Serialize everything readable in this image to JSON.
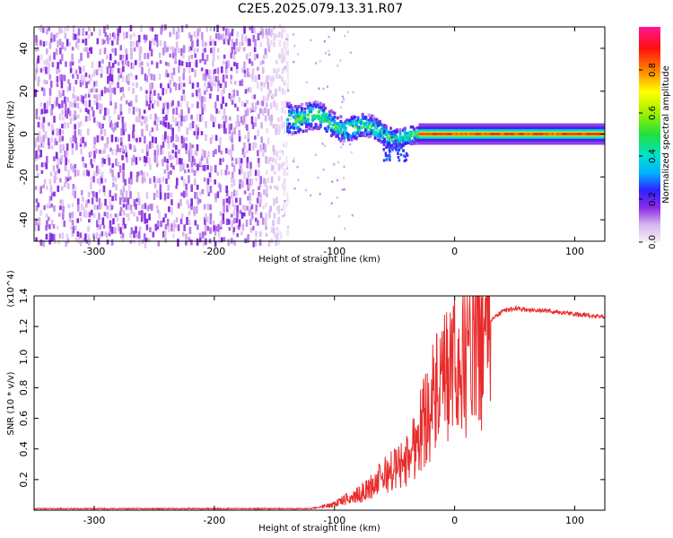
{
  "figure_title": "C2E5.2025.079.13.31.R07",
  "chart_data": [
    {
      "type": "heatmap",
      "title": "C2E5.2025.079.13.31.R07",
      "xlabel": "Height of straight line (km)",
      "ylabel": "Frequency (Hz)",
      "xlim": [
        -350,
        125
      ],
      "ylim": [
        -50,
        50
      ],
      "x_ticks": [
        -300,
        -200,
        -100,
        0,
        100
      ],
      "y_ticks": [
        -40,
        -20,
        0,
        20,
        40
      ],
      "colorbar": {
        "label": "Normalized spectral amplitude",
        "range": [
          0.0,
          1.0
        ],
        "ticks": [
          0.0,
          0.2,
          0.4,
          0.6,
          0.8
        ]
      },
      "regions": [
        {
          "name": "diffuse noise",
          "x_range": [
            -350,
            -140
          ],
          "freq_range": [
            -50,
            50
          ],
          "amplitude": 0.15
        },
        {
          "name": "scattered band",
          "x_range": [
            -140,
            -30
          ],
          "center_freq_start": 10,
          "center_freq_end": -2,
          "amplitude": 0.45
        },
        {
          "name": "stable carrier",
          "x_range": [
            -30,
            125
          ],
          "center_freq": 0,
          "amplitude": 0.9
        }
      ]
    },
    {
      "type": "line",
      "xlabel": "Height of straight line (km)",
      "ylabel": "SNR (10 * v/v)",
      "y_multiplier": "(x10^4)",
      "xlim": [
        -350,
        125
      ],
      "ylim": [
        0,
        1.4
      ],
      "x_ticks": [
        -300,
        -200,
        -100,
        0,
        100
      ],
      "y_ticks": [
        0.2,
        0.4,
        0.6,
        0.8,
        1.0,
        1.2,
        1.4
      ],
      "series": [
        {
          "name": "SNR",
          "color": "#e82c2c",
          "x": [
            -350,
            -300,
            -200,
            -120,
            -105,
            -90,
            -80,
            -70,
            -60,
            -50,
            -40,
            -30,
            -20,
            -10,
            0,
            10,
            20,
            30,
            40,
            50,
            60,
            80,
            100,
            125
          ],
          "y": [
            0.01,
            0.01,
            0.01,
            0.01,
            0.03,
            0.07,
            0.1,
            0.15,
            0.22,
            0.27,
            0.32,
            0.5,
            0.7,
            0.8,
            0.95,
            1.02,
            1.12,
            1.24,
            1.3,
            1.32,
            1.31,
            1.3,
            1.28,
            1.26
          ]
        }
      ]
    }
  ]
}
